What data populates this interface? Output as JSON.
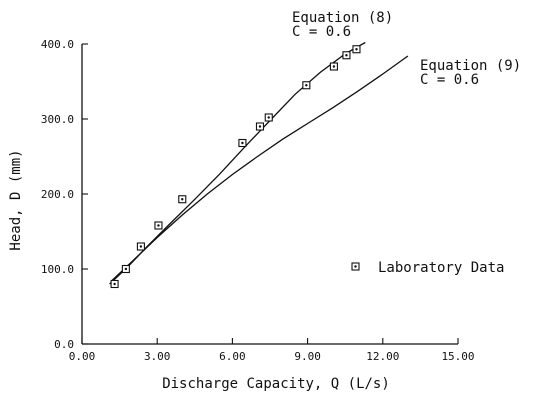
{
  "chart_data": {
    "type": "scatter",
    "xlabel": "Discharge Capacity, Q (L/s)",
    "ylabel": "Head, D (mm)",
    "xlim": [
      0,
      15
    ],
    "ylim": [
      0,
      400
    ],
    "x_ticks": [
      "0.00",
      "3.00",
      "6.00",
      "9.00",
      "12.00",
      "15.00"
    ],
    "x_tick_values": [
      0,
      3,
      6,
      9,
      12,
      15
    ],
    "y_ticks": [
      "0.0",
      "100.0",
      "200.0",
      "300.0",
      "400.0"
    ],
    "y_tick_values": [
      0,
      100,
      200,
      300,
      400
    ],
    "grid": false,
    "series": [
      {
        "name": "Laboratory Data",
        "kind": "scatter",
        "marker": "square-dot",
        "x": [
          1.3,
          1.75,
          2.35,
          3.05,
          4.0,
          6.4,
          7.1,
          7.45,
          8.95,
          10.05,
          10.55,
          10.95
        ],
        "y": [
          80,
          100,
          130,
          158,
          193,
          268,
          290,
          302,
          345,
          370,
          385,
          393
        ]
      },
      {
        "name": "",
        "kind": "line",
        "x": [
          1.1,
          1.8,
          2.6,
          3.5,
          4.5,
          5.5,
          6.5,
          7.5,
          8.5,
          9.5,
          10.5,
          11.3
        ],
        "y": [
          80,
          102,
          130,
          160,
          193,
          227,
          263,
          298,
          333,
          362,
          387,
          402
        ]
      },
      {
        "name": "",
        "kind": "line",
        "x": [
          1.2,
          2.0,
          3.0,
          4.0,
          5.0,
          6.0,
          7.0,
          8.0,
          9.0,
          10.0,
          11.0,
          12.0,
          13.0
        ],
        "y": [
          85,
          110,
          142,
          172,
          200,
          226,
          250,
          273,
          294,
          315,
          337,
          360,
          384
        ]
      }
    ],
    "annotations": [
      {
        "id": "eq8",
        "line1": "Equation (8)",
        "line2": "C = 0.6"
      },
      {
        "id": "eq9",
        "line1": "Equation (9)",
        "line2": "C = 0.6"
      }
    ],
    "legend": {
      "position": "right",
      "entry": "Laboratory Data"
    }
  }
}
